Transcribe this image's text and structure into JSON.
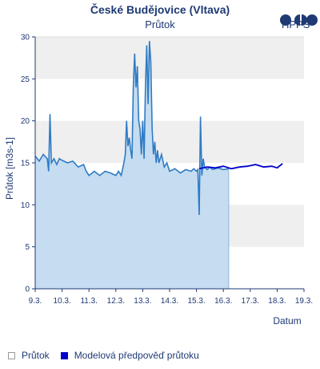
{
  "header": {
    "title": "České Budějovice (Vltava)",
    "subtitle": "Průtok",
    "logo_text": "HPPS"
  },
  "chart_data": {
    "type": "area",
    "ylabel": "Průtok [m3s-1]",
    "xlabel": "Datum",
    "ylim": [
      0,
      30
    ],
    "yticks": [
      "0",
      "5",
      "10",
      "15",
      "20",
      "25",
      "30"
    ],
    "xlim": [
      9,
      19
    ],
    "xticks": [
      "9.3.",
      "10.3.",
      "11.3.",
      "12.3.",
      "13.3.",
      "14.3.",
      "15.3.",
      "16.3.",
      "17.3.",
      "18.3.",
      "19.3."
    ],
    "grid": "horizontal bands",
    "legend_position": "bottom-left",
    "series": [
      {
        "name": "Průtok",
        "fill_color": "#c5dcf1",
        "line_color": "#2f7bc4",
        "x": [
          9.0,
          9.15,
          9.3,
          9.45,
          9.5,
          9.55,
          9.6,
          9.7,
          9.8,
          9.9,
          10.0,
          10.2,
          10.4,
          10.6,
          10.8,
          10.9,
          11.0,
          11.2,
          11.4,
          11.6,
          11.8,
          12.0,
          12.1,
          12.2,
          12.3,
          12.35,
          12.4,
          12.45,
          12.5,
          12.55,
          12.6,
          12.65,
          12.7,
          12.75,
          12.8,
          12.85,
          12.9,
          12.95,
          13.0,
          13.05,
          13.1,
          13.15,
          13.2,
          13.25,
          13.3,
          13.35,
          13.4,
          13.45,
          13.5,
          13.55,
          13.6,
          13.7,
          13.8,
          13.9,
          14.0,
          14.2,
          14.4,
          14.6,
          14.8,
          14.9,
          15.0,
          15.05,
          15.1,
          15.15,
          15.2,
          15.25,
          15.3,
          15.4,
          15.5,
          15.6,
          15.8,
          16.0,
          16.2
        ],
        "values": [
          15.8,
          15.2,
          16.0,
          15.5,
          14.0,
          20.8,
          15.0,
          15.5,
          14.8,
          15.5,
          15.3,
          15.0,
          15.2,
          14.5,
          14.8,
          14.0,
          13.5,
          14.0,
          13.5,
          14.0,
          13.8,
          13.5,
          14.0,
          13.5,
          15.0,
          16.0,
          20.0,
          17.0,
          18.0,
          16.5,
          15.5,
          24.0,
          28.0,
          24.0,
          26.5,
          20.0,
          19.0,
          16.0,
          20.0,
          15.5,
          24.0,
          29.0,
          22.0,
          29.5,
          27.0,
          19.0,
          16.0,
          17.5,
          15.0,
          16.5,
          15.0,
          16.0,
          14.5,
          15.0,
          14.0,
          14.3,
          13.8,
          14.2,
          14.0,
          14.3,
          14.0,
          14.2,
          8.8,
          20.5,
          13.5,
          15.5,
          14.5,
          14.2,
          14.5,
          14.2,
          14.4,
          14.2,
          14.3
        ]
      },
      {
        "name": "Modelová předpověď průtoku",
        "line_color": "#0000cc",
        "x": [
          15.1,
          15.4,
          15.7,
          16.0,
          16.3,
          16.6,
          16.9,
          17.2,
          17.5,
          17.8,
          18.0,
          18.2
        ],
        "values": [
          14.3,
          14.5,
          14.4,
          14.6,
          14.3,
          14.5,
          14.6,
          14.8,
          14.5,
          14.6,
          14.4,
          14.9
        ]
      }
    ]
  }
}
